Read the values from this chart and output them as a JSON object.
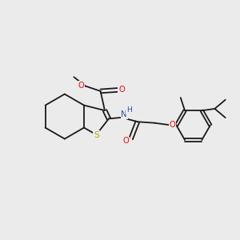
{
  "background_color": "#ebebeb",
  "atom_colors": {
    "C": "#000000",
    "N": "#2255aa",
    "O": "#ff0000",
    "S": "#bbaa00",
    "H": "#2255aa"
  },
  "bond_color": "#1a1a1a",
  "figsize": [
    3.0,
    3.0
  ],
  "dpi": 100,
  "lw": 1.3,
  "fs": 7.2
}
